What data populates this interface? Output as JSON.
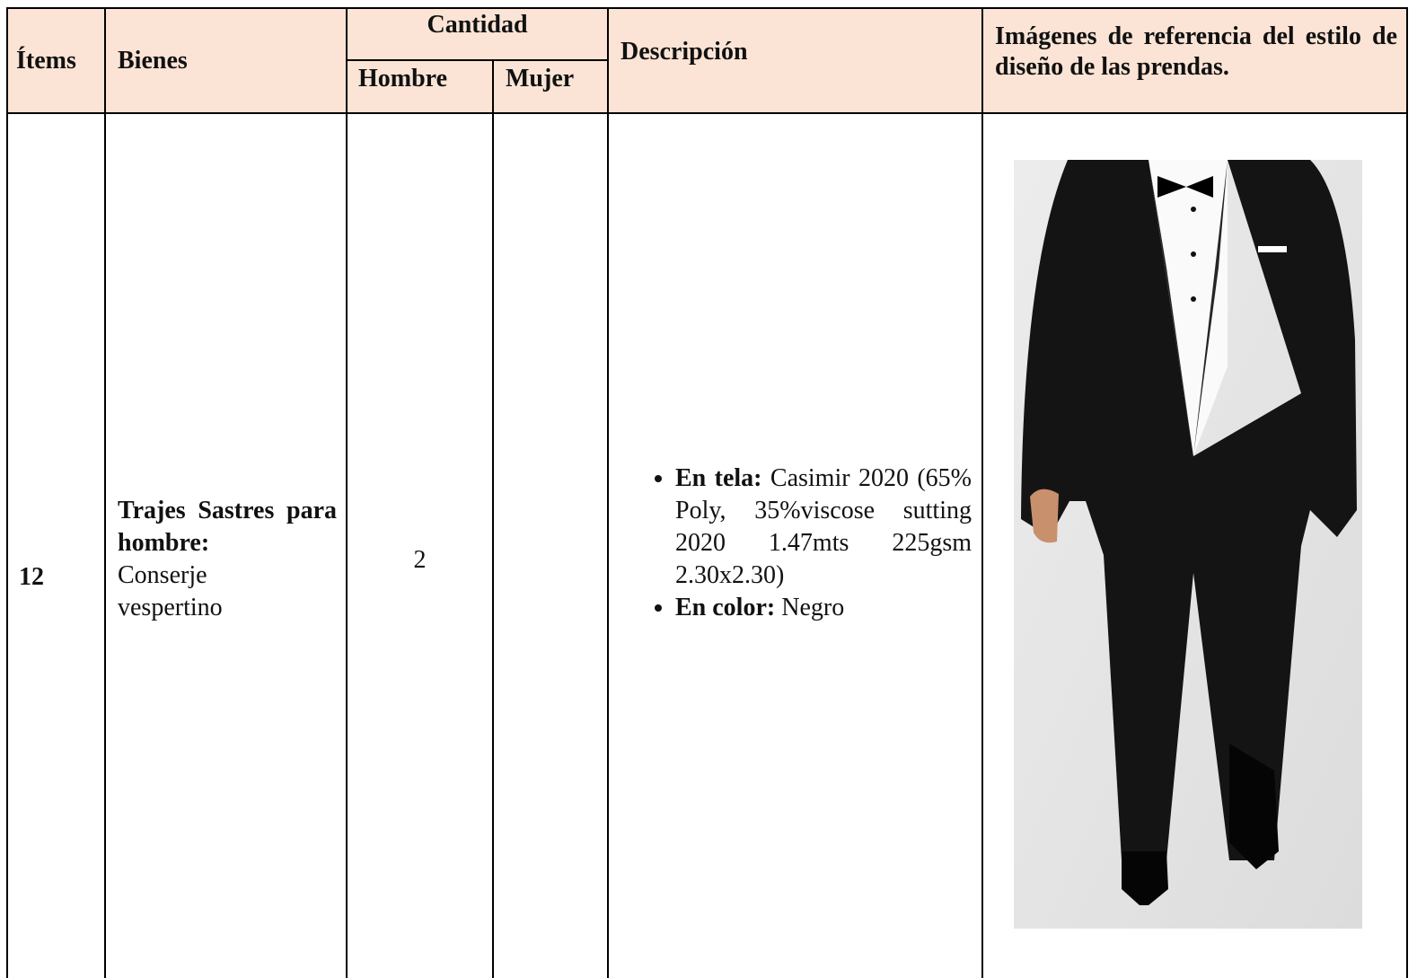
{
  "table": {
    "header": {
      "items": "Ítems",
      "goods": "Bienes",
      "quantity": "Cantidad",
      "men": "Hombre",
      "women": "Mujer",
      "description": "Descripción",
      "images": "Imágenes de referencia del estilo de diseño de las prendas."
    },
    "rows": [
      {
        "item": 12,
        "goods_bold": "Trajes Sastres para hombre:",
        "goods_text": "Conserje vespertino",
        "men": 2,
        "description": [
          {
            "label": "En tela:",
            "text": "Casimir 2020 (65% Poly, 35%viscose sutting 2020 1.47mts 225gsm 2.30x2.30)"
          },
          {
            "label": "En color:",
            "text": "Negro"
          }
        ]
      }
    ]
  }
}
